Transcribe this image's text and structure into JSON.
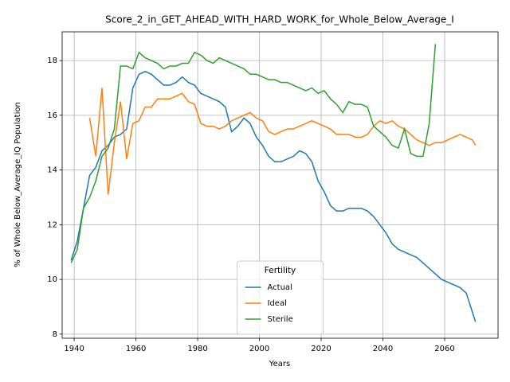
{
  "chart_data": {
    "type": "line",
    "title": "Score_2_in_GET_AHEAD_WITH_HARD_WORK_for_Whole_Below_Average_I",
    "xlabel": "Years",
    "ylabel": "% of Whole Below_Average_IQ Population",
    "legend_title": "Fertility",
    "legend": "lower center",
    "grid": true,
    "xlim": [
      1936.1,
      2077.3
    ],
    "ylim": [
      7.85,
      19.05
    ],
    "xticks": [
      1940,
      1960,
      1980,
      2000,
      2020,
      2040,
      2060
    ],
    "yticks": [
      8,
      10,
      12,
      14,
      16,
      18
    ],
    "x": [
      1939,
      1941,
      1943,
      1945,
      1947,
      1949,
      1951,
      1953,
      1955,
      1957,
      1959,
      1961,
      1963,
      1965,
      1967,
      1969,
      1971,
      1973,
      1975,
      1977,
      1979,
      1981,
      1983,
      1985,
      1987,
      1989,
      1991,
      1993,
      1995,
      1997,
      1999,
      2001,
      2003,
      2005,
      2007,
      2009,
      2011,
      2013,
      2015,
      2017,
      2019,
      2021,
      2023,
      2025,
      2027,
      2029,
      2031,
      2033,
      2035,
      2037,
      2039,
      2041,
      2043,
      2045,
      2047,
      2049,
      2051,
      2053,
      2055,
      2057,
      2059,
      2061,
      2063,
      2065,
      2067,
      2069,
      2070
    ],
    "series": [
      {
        "name": "Actual",
        "color": "#1f77b4",
        "values": [
          10.7,
          11.4,
          12.6,
          13.8,
          14.1,
          14.7,
          14.9,
          15.2,
          15.3,
          15.5,
          17.0,
          17.5,
          17.6,
          17.5,
          17.3,
          17.1,
          17.1,
          17.2,
          17.4,
          17.2,
          17.1,
          16.8,
          16.7,
          16.6,
          16.5,
          16.3,
          15.4,
          15.6,
          15.9,
          15.7,
          15.2,
          14.9,
          14.5,
          14.3,
          14.3,
          14.4,
          14.5,
          14.7,
          14.6,
          14.3,
          13.6,
          13.2,
          12.7,
          12.5,
          12.5,
          12.6,
          12.6,
          12.6,
          12.5,
          12.3,
          12.0,
          11.7,
          11.3,
          11.1,
          11.0,
          10.9,
          10.8,
          10.6,
          10.4,
          10.2,
          10.0,
          9.9,
          9.8,
          9.7,
          9.5,
          8.8,
          8.45
        ]
      },
      {
        "name": "Ideal",
        "color": "#ff7f0e",
        "values": [
          null,
          null,
          null,
          15.9,
          14.5,
          17.0,
          13.1,
          15.0,
          16.5,
          14.4,
          15.7,
          15.8,
          16.3,
          16.3,
          16.6,
          16.6,
          16.6,
          16.7,
          16.8,
          16.5,
          16.4,
          15.7,
          15.6,
          15.6,
          15.5,
          15.6,
          15.8,
          15.9,
          16.0,
          16.1,
          15.9,
          15.8,
          15.4,
          15.3,
          15.4,
          15.5,
          15.5,
          15.6,
          15.7,
          15.8,
          15.7,
          15.6,
          15.5,
          15.3,
          15.3,
          15.3,
          15.2,
          15.2,
          15.3,
          15.6,
          15.8,
          15.7,
          15.8,
          15.6,
          15.5,
          15.3,
          15.1,
          15.0,
          14.9,
          15.0,
          15.0,
          15.1,
          15.2,
          15.3,
          15.2,
          15.1,
          14.9
        ]
      },
      {
        "name": "Sterile",
        "color": "#2ca02c",
        "values": [
          10.6,
          11.1,
          12.6,
          13.0,
          13.6,
          14.5,
          14.8,
          15.5,
          17.8,
          17.8,
          17.7,
          18.3,
          18.1,
          18.0,
          17.9,
          17.7,
          17.8,
          17.8,
          17.9,
          17.9,
          18.3,
          18.2,
          18.0,
          17.9,
          18.1,
          18.0,
          17.9,
          17.8,
          17.7,
          17.5,
          17.5,
          17.4,
          17.3,
          17.3,
          17.2,
          17.2,
          17.1,
          17.0,
          16.9,
          17.0,
          16.8,
          16.9,
          16.6,
          16.4,
          16.1,
          16.5,
          16.4,
          16.4,
          16.3,
          15.6,
          15.4,
          15.2,
          14.9,
          14.8,
          15.5,
          14.6,
          14.5,
          14.5,
          15.7,
          18.6,
          null,
          null,
          null,
          null,
          null,
          null,
          null
        ]
      }
    ]
  }
}
